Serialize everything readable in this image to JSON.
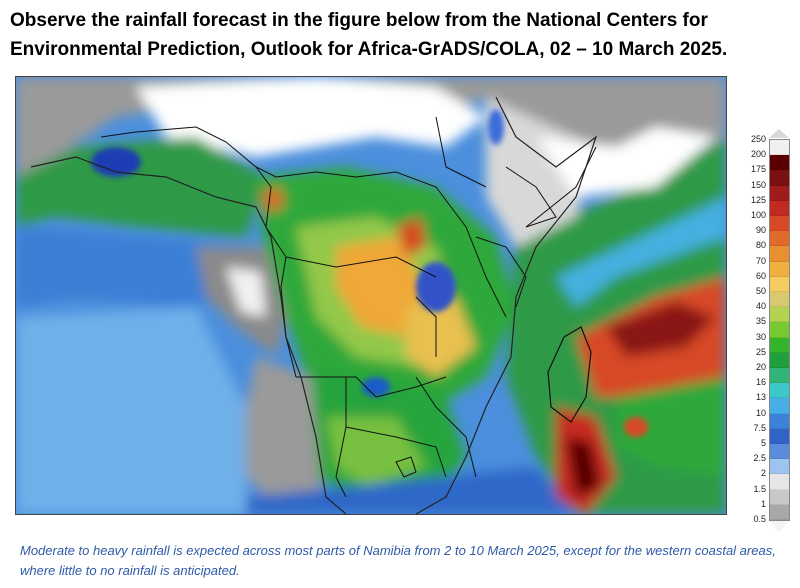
{
  "header": {
    "title": "Observe the rainfall forecast in the figure below from the National Centers for Environmental Prediction, Outlook for Africa-GrADS/COLA, 02 – 10 March 2025."
  },
  "map": {
    "legend": {
      "values": [
        "250",
        "200",
        "175",
        "150",
        "125",
        "100",
        "90",
        "80",
        "70",
        "60",
        "50",
        "40",
        "35",
        "30",
        "25",
        "20",
        "16",
        "13",
        "10",
        "7.5",
        "5",
        "2.5",
        "2",
        "1.5",
        "1",
        "0.5"
      ],
      "colors": [
        "#f0f0f0",
        "#5a0000",
        "#7a1010",
        "#a01c1c",
        "#c02a20",
        "#d84a26",
        "#e06a2a",
        "#e89030",
        "#efb040",
        "#f4cc60",
        "#d8c870",
        "#b4d250",
        "#78c832",
        "#34b42a",
        "#1ea03c",
        "#30b478",
        "#3cc8c8",
        "#46b0e6",
        "#3c82dc",
        "#3264c8",
        "#5a8cdc",
        "#9cc4ee",
        "#e6e6e6",
        "#c8c8c8",
        "#a8a8a8",
        "#888888"
      ]
    }
  },
  "caption": {
    "text": "Moderate to heavy rainfall is expected across most parts of Namibia from 2 to 10 March 2025, except for the western coastal areas, where little to no rainfall is anticipated."
  }
}
